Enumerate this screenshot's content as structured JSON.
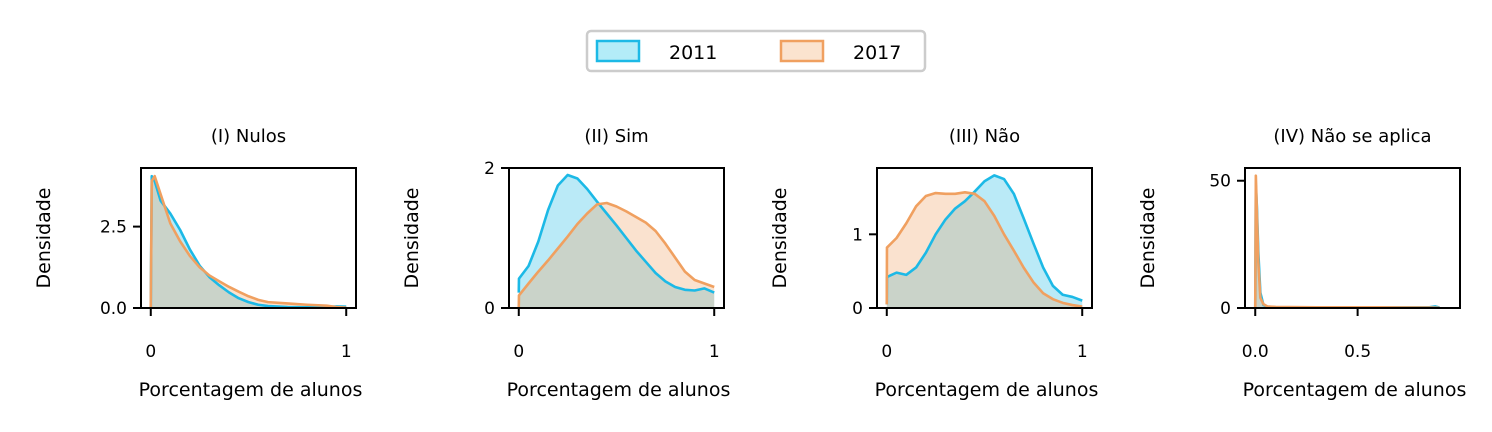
{
  "legend": {
    "entries": [
      {
        "label": "2011",
        "color": "#1cb9e6",
        "fill": "#b3ecf8"
      },
      {
        "label": "2017",
        "color": "#f0a060",
        "fill": "#fbe3cf"
      }
    ],
    "placement": "top-center"
  },
  "chart_data": [
    {
      "type": "area",
      "title": "(I) Nulos",
      "xlabel": "Porcentagem de alunos",
      "ylabel": "Densidade",
      "xlim": [
        -0.05,
        1.05
      ],
      "ylim": [
        0,
        4.3
      ],
      "xticks": [
        {
          "v": 0,
          "label": "0"
        },
        {
          "v": 1,
          "label": "1"
        }
      ],
      "yticks": [
        {
          "v": 0,
          "label": "0.0"
        },
        {
          "v": 2.5,
          "label": "2.5"
        }
      ],
      "grid": false,
      "series": [
        {
          "name": "2011",
          "x": [
            0,
            0.005,
            0.02,
            0.05,
            0.1,
            0.15,
            0.2,
            0.25,
            0.3,
            0.35,
            0.4,
            0.45,
            0.5,
            0.55,
            0.6,
            0.7,
            0.8,
            0.9,
            0.95,
            1.0
          ],
          "y": [
            0,
            4.05,
            3.9,
            3.3,
            2.9,
            2.4,
            1.8,
            1.3,
            0.95,
            0.7,
            0.48,
            0.3,
            0.18,
            0.1,
            0.06,
            0.03,
            0.02,
            0.03,
            0.05,
            0.04
          ]
        },
        {
          "name": "2017",
          "x": [
            0,
            0.005,
            0.02,
            0.05,
            0.1,
            0.15,
            0.2,
            0.25,
            0.3,
            0.35,
            0.4,
            0.45,
            0.5,
            0.55,
            0.6,
            0.7,
            0.8,
            0.9,
            0.95,
            1.0
          ],
          "y": [
            0,
            3.9,
            4.05,
            3.5,
            2.6,
            2.05,
            1.6,
            1.25,
            1.0,
            0.82,
            0.65,
            0.5,
            0.36,
            0.25,
            0.18,
            0.14,
            0.1,
            0.07,
            0.03,
            0.01
          ]
        }
      ]
    },
    {
      "type": "area",
      "title": "(II) Sim",
      "xlabel": "Porcentagem de alunos",
      "ylabel": "Densidade",
      "xlim": [
        -0.05,
        1.05
      ],
      "ylim": [
        0,
        2.0
      ],
      "xticks": [
        {
          "v": 0,
          "label": "0"
        },
        {
          "v": 1,
          "label": "1"
        }
      ],
      "yticks": [
        {
          "v": 0,
          "label": "0"
        },
        {
          "v": 2,
          "label": "2"
        }
      ],
      "grid": false,
      "series": [
        {
          "name": "2011",
          "x": [
            0,
            0.001,
            0.05,
            0.1,
            0.15,
            0.2,
            0.25,
            0.3,
            0.35,
            0.4,
            0.45,
            0.5,
            0.55,
            0.6,
            0.65,
            0.7,
            0.75,
            0.8,
            0.85,
            0.9,
            0.95,
            1.0
          ],
          "y": [
            0.22,
            0.42,
            0.6,
            0.95,
            1.4,
            1.75,
            1.9,
            1.85,
            1.7,
            1.52,
            1.35,
            1.18,
            1.0,
            0.82,
            0.66,
            0.5,
            0.38,
            0.3,
            0.26,
            0.25,
            0.28,
            0.22
          ]
        },
        {
          "name": "2017",
          "x": [
            0,
            0.001,
            0.05,
            0.1,
            0.15,
            0.2,
            0.25,
            0.3,
            0.35,
            0.4,
            0.45,
            0.5,
            0.55,
            0.6,
            0.65,
            0.7,
            0.75,
            0.8,
            0.85,
            0.9,
            0.95,
            1.0
          ],
          "y": [
            0.0,
            0.18,
            0.35,
            0.52,
            0.68,
            0.85,
            1.02,
            1.2,
            1.35,
            1.48,
            1.5,
            1.45,
            1.38,
            1.3,
            1.22,
            1.1,
            0.92,
            0.72,
            0.52,
            0.4,
            0.35,
            0.3
          ]
        }
      ]
    },
    {
      "type": "area",
      "title": "(III) Não",
      "xlabel": "Porcentagem de alunos",
      "ylabel": "Densidade",
      "xlim": [
        -0.05,
        1.05
      ],
      "ylim": [
        0,
        1.9
      ],
      "xticks": [
        {
          "v": 0,
          "label": "0"
        },
        {
          "v": 1,
          "label": "1"
        }
      ],
      "yticks": [
        {
          "v": 0,
          "label": "0"
        },
        {
          "v": 1,
          "label": "1"
        }
      ],
      "grid": false,
      "series": [
        {
          "name": "2011",
          "x": [
            0,
            0.001,
            0.05,
            0.1,
            0.15,
            0.2,
            0.25,
            0.3,
            0.35,
            0.4,
            0.45,
            0.5,
            0.55,
            0.6,
            0.65,
            0.7,
            0.75,
            0.8,
            0.85,
            0.9,
            0.95,
            1.0
          ],
          "y": [
            0.05,
            0.42,
            0.48,
            0.45,
            0.55,
            0.75,
            1.0,
            1.2,
            1.35,
            1.45,
            1.58,
            1.72,
            1.8,
            1.75,
            1.55,
            1.22,
            0.88,
            0.55,
            0.3,
            0.18,
            0.15,
            0.1
          ]
        },
        {
          "name": "2017",
          "x": [
            0,
            0.001,
            0.05,
            0.1,
            0.15,
            0.2,
            0.25,
            0.3,
            0.35,
            0.4,
            0.45,
            0.5,
            0.55,
            0.6,
            0.65,
            0.7,
            0.75,
            0.8,
            0.85,
            0.9,
            0.95,
            1.0
          ],
          "y": [
            0.05,
            0.82,
            0.95,
            1.15,
            1.38,
            1.52,
            1.56,
            1.55,
            1.55,
            1.57,
            1.55,
            1.45,
            1.25,
            1.0,
            0.78,
            0.55,
            0.35,
            0.2,
            0.12,
            0.07,
            0.04,
            0.02
          ]
        }
      ]
    },
    {
      "type": "area",
      "title": "(IV) Não se aplica",
      "xlabel": "Porcentagem de alunos",
      "ylabel": "Densidade",
      "xlim": [
        -0.05,
        1.0
      ],
      "ylim": [
        0,
        55
      ],
      "xticks": [
        {
          "v": 0.0,
          "label": "0.0"
        },
        {
          "v": 0.5,
          "label": "0.5"
        }
      ],
      "yticks": [
        {
          "v": 0,
          "label": "0"
        },
        {
          "v": 50,
          "label": "50"
        }
      ],
      "grid": false,
      "series": [
        {
          "name": "2011",
          "x": [
            0,
            0.003,
            0.008,
            0.015,
            0.025,
            0.04,
            0.06,
            0.1,
            0.3,
            0.6,
            0.85,
            0.88,
            0.9
          ],
          "y": [
            0,
            48,
            40,
            22,
            6,
            1.2,
            0.5,
            0.3,
            0.25,
            0.25,
            0.3,
            0.6,
            0.2
          ]
        },
        {
          "name": "2017",
          "x": [
            0,
            0.003,
            0.008,
            0.015,
            0.025,
            0.04,
            0.06,
            0.1,
            0.3,
            0.6,
            0.85,
            0.9
          ],
          "y": [
            0,
            52,
            38,
            18,
            4,
            1.5,
            0.6,
            0.4,
            0.3,
            0.25,
            0.2,
            0.1
          ]
        }
      ]
    }
  ]
}
